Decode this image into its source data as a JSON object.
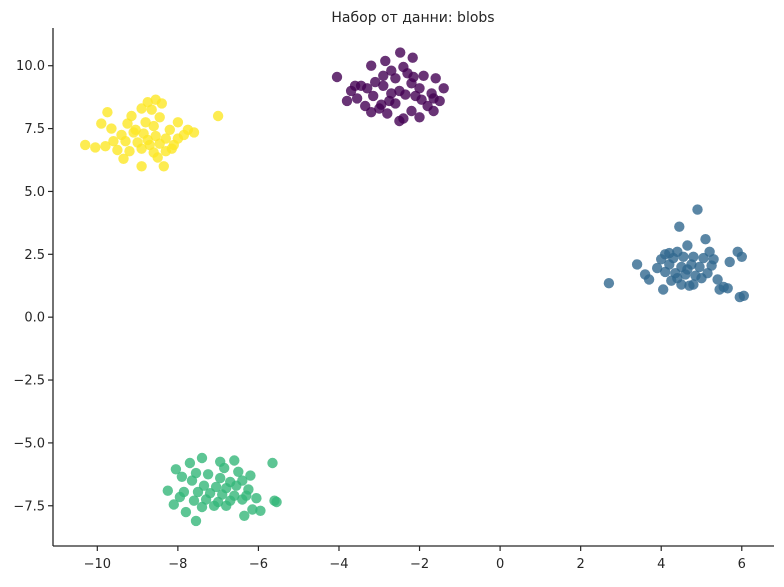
{
  "chart_data": {
    "type": "scatter",
    "title": "Набор от данни: blobs",
    "xlabel": "",
    "ylabel": "",
    "xlim": [
      -11.1,
      6.8
    ],
    "ylim": [
      -9.1,
      11.5
    ],
    "xticks": [
      -10,
      -8,
      -6,
      -4,
      -2,
      0,
      2,
      4,
      6
    ],
    "yticks": [
      -7.5,
      -5.0,
      -2.5,
      0.0,
      2.5,
      5.0,
      7.5,
      10.0
    ],
    "xtick_labels": [
      "−10",
      "−8",
      "−6",
      "−4",
      "−2",
      "0",
      "2",
      "4",
      "6"
    ],
    "ytick_labels": [
      "−7.5",
      "−5.0",
      "−2.5",
      "0.0",
      "2.5",
      "5.0",
      "7.5",
      "10.0"
    ],
    "grid": false,
    "legend": "none",
    "marker_alpha": 0.8,
    "series": [
      {
        "color": "#440154",
        "points": [
          [
            -2.48,
            10.52
          ],
          [
            -2.17,
            10.32
          ],
          [
            -2.85,
            10.19
          ],
          [
            -3.2,
            10.0
          ],
          [
            -2.7,
            9.8
          ],
          [
            -2.4,
            9.95
          ],
          [
            -1.9,
            9.6
          ],
          [
            -4.05,
            9.55
          ],
          [
            -1.6,
            9.5
          ],
          [
            -3.45,
            9.2
          ],
          [
            -3.1,
            9.35
          ],
          [
            -2.6,
            9.5
          ],
          [
            -2.2,
            9.3
          ],
          [
            -1.4,
            9.1
          ],
          [
            -3.7,
            9.0
          ],
          [
            -3.3,
            9.1
          ],
          [
            -2.9,
            9.2
          ],
          [
            -2.5,
            9.0
          ],
          [
            -2.0,
            9.1
          ],
          [
            -1.7,
            8.9
          ],
          [
            -3.55,
            8.7
          ],
          [
            -3.15,
            8.8
          ],
          [
            -2.75,
            8.6
          ],
          [
            -2.35,
            8.85
          ],
          [
            -1.95,
            8.65
          ],
          [
            -1.65,
            8.7
          ],
          [
            -3.35,
            8.4
          ],
          [
            -3.0,
            8.3
          ],
          [
            -2.6,
            8.5
          ],
          [
            -2.2,
            8.2
          ],
          [
            -1.8,
            8.4
          ],
          [
            -3.2,
            8.15
          ],
          [
            -2.8,
            8.1
          ],
          [
            -2.4,
            7.9
          ],
          [
            -2.0,
            7.95
          ],
          [
            -1.65,
            8.2
          ],
          [
            -2.5,
            7.8
          ],
          [
            -2.9,
            9.6
          ],
          [
            -2.3,
            9.7
          ],
          [
            -3.8,
            8.6
          ],
          [
            -1.5,
            8.6
          ],
          [
            -2.1,
            8.8
          ],
          [
            -3.6,
            9.2
          ],
          [
            -2.7,
            8.9
          ],
          [
            -2.95,
            8.45
          ],
          [
            -2.15,
            9.55
          ]
        ]
      },
      {
        "color": "#31688e",
        "points": [
          [
            4.9,
            4.28
          ],
          [
            4.45,
            3.6
          ],
          [
            5.1,
            3.1
          ],
          [
            4.65,
            2.85
          ],
          [
            4.1,
            2.5
          ],
          [
            4.4,
            2.6
          ],
          [
            5.2,
            2.6
          ],
          [
            5.9,
            2.6
          ],
          [
            4.0,
            2.3
          ],
          [
            4.3,
            2.35
          ],
          [
            4.55,
            2.4
          ],
          [
            4.8,
            2.4
          ],
          [
            5.05,
            2.35
          ],
          [
            5.3,
            2.3
          ],
          [
            6.0,
            2.4
          ],
          [
            3.4,
            2.1
          ],
          [
            4.2,
            2.1
          ],
          [
            4.5,
            2.0
          ],
          [
            4.75,
            2.1
          ],
          [
            4.95,
            2.0
          ],
          [
            5.25,
            2.05
          ],
          [
            5.7,
            2.2
          ],
          [
            3.6,
            1.7
          ],
          [
            4.1,
            1.8
          ],
          [
            4.35,
            1.75
          ],
          [
            4.6,
            1.7
          ],
          [
            4.85,
            1.65
          ],
          [
            5.15,
            1.75
          ],
          [
            5.4,
            1.5
          ],
          [
            3.7,
            1.5
          ],
          [
            4.25,
            1.45
          ],
          [
            4.5,
            1.3
          ],
          [
            4.8,
            1.3
          ],
          [
            5.0,
            1.55
          ],
          [
            5.55,
            1.2
          ],
          [
            2.7,
            1.35
          ],
          [
            4.05,
            1.1
          ],
          [
            4.7,
            1.25
          ],
          [
            5.45,
            1.1
          ],
          [
            5.65,
            1.15
          ],
          [
            5.95,
            0.8
          ],
          [
            6.05,
            0.85
          ],
          [
            4.2,
            2.55
          ],
          [
            4.65,
            1.9
          ],
          [
            3.9,
            1.95
          ],
          [
            4.4,
            1.55
          ]
        ]
      },
      {
        "color": "#35b779",
        "points": [
          [
            -7.4,
            -5.6
          ],
          [
            -6.95,
            -5.75
          ],
          [
            -6.6,
            -5.7
          ],
          [
            -5.65,
            -5.8
          ],
          [
            -7.7,
            -5.8
          ],
          [
            -6.85,
            -6.0
          ],
          [
            -8.05,
            -6.05
          ],
          [
            -6.5,
            -6.15
          ],
          [
            -7.55,
            -6.2
          ],
          [
            -7.25,
            -6.25
          ],
          [
            -6.2,
            -6.3
          ],
          [
            -7.9,
            -6.35
          ],
          [
            -7.65,
            -6.5
          ],
          [
            -6.95,
            -6.4
          ],
          [
            -6.7,
            -6.55
          ],
          [
            -6.4,
            -6.5
          ],
          [
            -7.35,
            -6.7
          ],
          [
            -7.05,
            -6.75
          ],
          [
            -6.8,
            -6.8
          ],
          [
            -6.55,
            -6.7
          ],
          [
            -6.25,
            -6.85
          ],
          [
            -8.25,
            -6.9
          ],
          [
            -7.85,
            -6.95
          ],
          [
            -7.5,
            -6.95
          ],
          [
            -7.2,
            -7.0
          ],
          [
            -6.9,
            -7.05
          ],
          [
            -6.6,
            -7.1
          ],
          [
            -6.3,
            -7.1
          ],
          [
            -7.95,
            -7.15
          ],
          [
            -7.6,
            -7.3
          ],
          [
            -7.3,
            -7.25
          ],
          [
            -7.0,
            -7.35
          ],
          [
            -6.7,
            -7.3
          ],
          [
            -6.4,
            -7.25
          ],
          [
            -5.6,
            -7.3
          ],
          [
            -7.4,
            -7.55
          ],
          [
            -7.1,
            -7.5
          ],
          [
            -6.8,
            -7.5
          ],
          [
            -6.15,
            -7.65
          ],
          [
            -5.95,
            -7.7
          ],
          [
            -5.55,
            -7.35
          ],
          [
            -7.8,
            -7.75
          ],
          [
            -7.55,
            -8.1
          ],
          [
            -6.35,
            -7.9
          ],
          [
            -8.1,
            -7.45
          ],
          [
            -6.05,
            -7.2
          ]
        ]
      },
      {
        "color": "#fde725",
        "points": [
          [
            -8.55,
            8.65
          ],
          [
            -8.75,
            8.55
          ],
          [
            -8.4,
            8.5
          ],
          [
            -8.9,
            8.3
          ],
          [
            -8.65,
            8.25
          ],
          [
            -9.75,
            8.15
          ],
          [
            -9.9,
            7.7
          ],
          [
            -7.0,
            8.0
          ],
          [
            -8.45,
            7.95
          ],
          [
            -9.25,
            7.7
          ],
          [
            -8.8,
            7.75
          ],
          [
            -8.6,
            7.6
          ],
          [
            -8.2,
            7.45
          ],
          [
            -7.75,
            7.45
          ],
          [
            -9.4,
            7.25
          ],
          [
            -9.1,
            7.35
          ],
          [
            -8.85,
            7.3
          ],
          [
            -8.55,
            7.2
          ],
          [
            -8.3,
            7.1
          ],
          [
            -8.0,
            7.1
          ],
          [
            -7.6,
            7.35
          ],
          [
            -10.3,
            6.85
          ],
          [
            -9.6,
            7.0
          ],
          [
            -9.3,
            7.0
          ],
          [
            -9.0,
            6.95
          ],
          [
            -8.7,
            6.85
          ],
          [
            -8.45,
            6.9
          ],
          [
            -8.1,
            6.85
          ],
          [
            -9.8,
            6.8
          ],
          [
            -10.05,
            6.75
          ],
          [
            -9.5,
            6.65
          ],
          [
            -9.2,
            6.6
          ],
          [
            -8.9,
            6.7
          ],
          [
            -8.6,
            6.55
          ],
          [
            -8.3,
            6.6
          ],
          [
            -9.35,
            6.3
          ],
          [
            -8.5,
            6.35
          ],
          [
            -8.9,
            6.0
          ],
          [
            -8.35,
            6.0
          ],
          [
            -9.05,
            7.45
          ],
          [
            -7.85,
            7.25
          ],
          [
            -8.75,
            7.05
          ],
          [
            -9.65,
            7.5
          ],
          [
            -8.15,
            6.7
          ],
          [
            -9.15,
            8.0
          ],
          [
            -8.0,
            7.75
          ]
        ]
      }
    ]
  }
}
